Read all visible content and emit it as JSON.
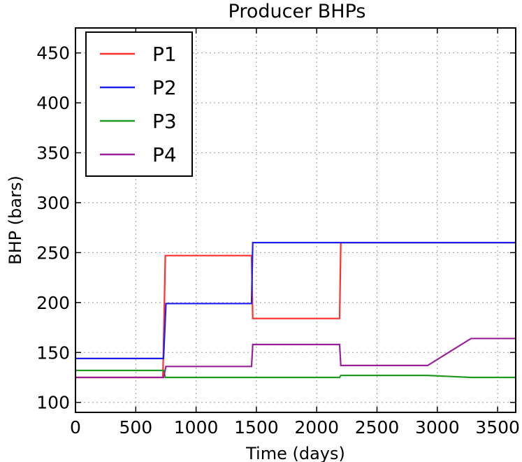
{
  "chart_data": {
    "type": "line",
    "title": "Producer BHPs",
    "xlabel": "Time (days)",
    "ylabel": "BHP (bars)",
    "xlim": [
      0,
      3650
    ],
    "ylim": [
      90,
      475
    ],
    "xticks": [
      0,
      500,
      1000,
      1500,
      2000,
      2500,
      3000,
      3500
    ],
    "yticks": [
      100,
      150,
      200,
      250,
      300,
      350,
      400,
      450
    ],
    "grid": true,
    "legend_position": "top-left",
    "series": [
      {
        "name": "P1",
        "color": "#ff3030",
        "x": [
          0,
          725,
          745,
          1460,
          1470,
          2190,
          2200,
          3650
        ],
        "y": [
          125,
          125,
          247,
          247,
          184,
          184,
          260,
          260
        ]
      },
      {
        "name": "P2",
        "color": "#2020ee",
        "x": [
          0,
          730,
          750,
          1460,
          1470,
          3650
        ],
        "y": [
          144,
          144,
          199,
          199,
          260,
          260
        ]
      },
      {
        "name": "P3",
        "color": "#229922",
        "x": [
          0,
          730,
          745,
          2190,
          2200,
          2920,
          3280,
          3650
        ],
        "y": [
          132,
          132,
          125,
          125,
          127,
          127,
          125,
          125
        ]
      },
      {
        "name": "P4",
        "color": "#992299",
        "x": [
          0,
          730,
          750,
          1460,
          1470,
          2190,
          2200,
          2920,
          3280,
          3650
        ],
        "y": [
          125,
          125,
          136,
          136,
          158,
          158,
          137,
          137,
          164,
          164
        ]
      }
    ]
  }
}
